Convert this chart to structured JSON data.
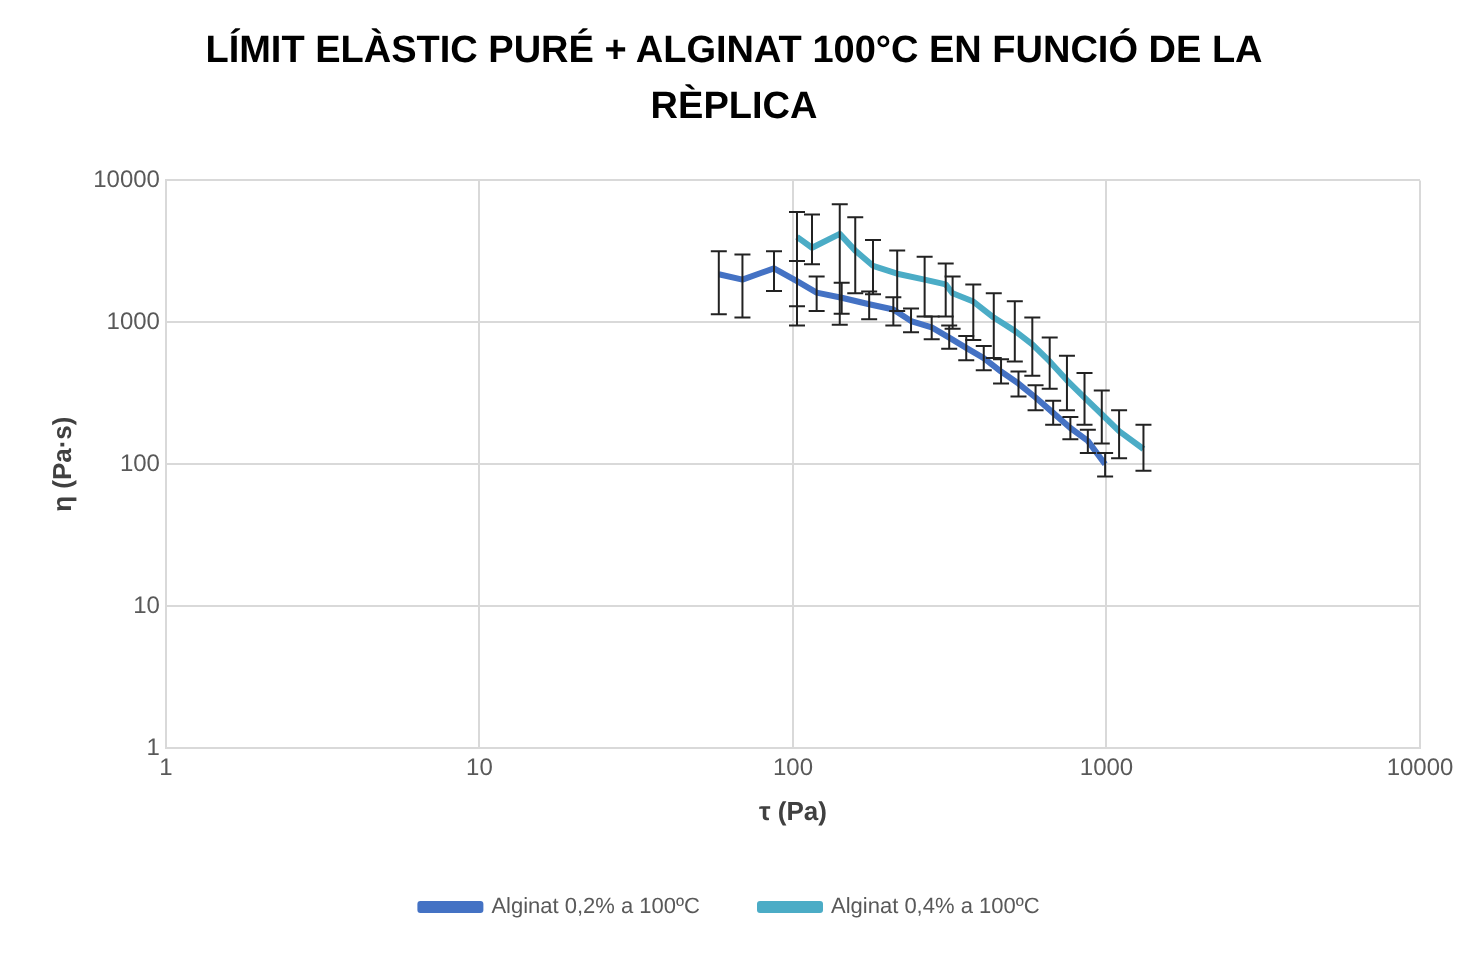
{
  "chart_data": {
    "type": "line",
    "title": "LÍMIT ELÀSTIC PURÉ + ALGINAT 100°C EN FUNCIÓ DE LA RÈPLICA",
    "xlabel": "τ (Pa)",
    "ylabel": "η (Pa·s)",
    "log": "xy",
    "xlim": [
      1,
      10000
    ],
    "ylim": [
      1,
      10000
    ],
    "xticks": [
      1,
      10,
      100,
      1000,
      10000
    ],
    "yticks": [
      1,
      10,
      100,
      1000,
      10000
    ],
    "grid": true,
    "legend": "bottom",
    "line_style": "solid",
    "series": [
      {
        "name": "Alginat 0,2% a 100ºC",
        "color": "#4472c4",
        "x": [
          58,
          69,
          87,
          103,
          119,
          143,
          175,
          209,
          238,
          277,
          315,
          357,
          406,
          461,
          524,
          594,
          676,
          767,
          872,
          990
        ],
        "values": [
          2180,
          2000,
          2400,
          1950,
          1620,
          1490,
          1340,
          1230,
          1020,
          920,
          780,
          660,
          560,
          450,
          370,
          295,
          230,
          180,
          146,
          100
        ],
        "errors": [
          [
            1140,
            3170
          ],
          [
            1080,
            3000
          ],
          [
            1660,
            3170
          ],
          [
            1300,
            2700
          ],
          [
            1200,
            2100
          ],
          [
            1150,
            1900
          ],
          [
            1050,
            1650
          ],
          [
            950,
            1500
          ],
          [
            850,
            1250
          ],
          [
            760,
            1100
          ],
          [
            650,
            950
          ],
          [
            540,
            800
          ],
          [
            460,
            680
          ],
          [
            370,
            550
          ],
          [
            300,
            450
          ],
          [
            240,
            360
          ],
          [
            190,
            280
          ],
          [
            150,
            215
          ],
          [
            120,
            175
          ],
          [
            82,
            120
          ]
        ]
      },
      {
        "name": "Alginat 0,4% a 100ºC",
        "color": "#4bacc6",
        "x": [
          103,
          115,
          141,
          158,
          180,
          215,
          263,
          307,
          323,
          376,
          437,
          510,
          580,
          659,
          748,
          851,
          966,
          1097,
          1312
        ],
        "values": [
          4000,
          3350,
          4200,
          3200,
          2500,
          2200,
          2000,
          1850,
          1600,
          1400,
          1080,
          870,
          700,
          530,
          390,
          294,
          225,
          171,
          128
        ],
        "errors": [
          [
            950,
            6000
          ],
          [
            2560,
            5750
          ],
          [
            960,
            6800
          ],
          [
            1600,
            5500
          ],
          [
            1575,
            3800
          ],
          [
            1200,
            3200
          ],
          [
            1100,
            2900
          ],
          [
            1100,
            2600
          ],
          [
            900,
            2100
          ],
          [
            750,
            1850
          ],
          [
            560,
            1600
          ],
          [
            530,
            1410
          ],
          [
            420,
            1080
          ],
          [
            340,
            780
          ],
          [
            240,
            580
          ],
          [
            190,
            440
          ],
          [
            140,
            330
          ],
          [
            110,
            240
          ],
          [
            90,
            190
          ]
        ]
      }
    ]
  }
}
